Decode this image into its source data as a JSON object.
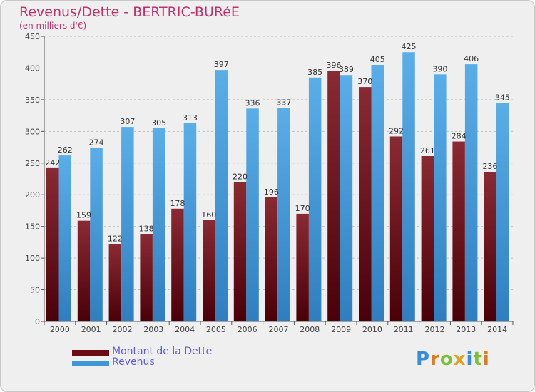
{
  "header": {
    "title": "Revenus/Dette - BERTRIC-BURéE",
    "subtitle": "(en milliers d'€)"
  },
  "colors": {
    "dette": "#6b0b14",
    "revenus": "#3d97d8",
    "title": "#c0306a",
    "legend_text": "#5b5bdb"
  },
  "legend": {
    "items": [
      {
        "label": "Montant de la Dette",
        "color": "#6b0b14"
      },
      {
        "label": "Revenus",
        "color": "#3d97d8"
      }
    ]
  },
  "logo": {
    "letters": [
      "P",
      "r",
      "o",
      "x",
      "i",
      "t",
      "i"
    ],
    "colors": [
      "#3a8ed8",
      "#e07a20",
      "#7bbf3a",
      "#e0a020",
      "#3a8ed8",
      "#7bbf3a",
      "#e07a20"
    ]
  },
  "chart_data": {
    "type": "bar",
    "title": "Revenus/Dette - BERTRIC-BURéE",
    "subtitle": "(en milliers d'€)",
    "categories": [
      "2000",
      "2001",
      "2002",
      "2003",
      "2004",
      "2005",
      "2006",
      "2007",
      "2008",
      "2009",
      "2010",
      "2011",
      "2012",
      "2013",
      "2014"
    ],
    "series": [
      {
        "name": "Montant de la Dette",
        "values": [
          242,
          159,
          122,
          138,
          178,
          160,
          220,
          196,
          170,
          396,
          370,
          292,
          261,
          284,
          236
        ]
      },
      {
        "name": "Revenus",
        "values": [
          262,
          274,
          307,
          305,
          313,
          397,
          336,
          337,
          385,
          389,
          405,
          425,
          390,
          406,
          345
        ]
      }
    ],
    "y_ticks": [
      0,
      50,
      100,
      150,
      200,
      250,
      300,
      350,
      400,
      450
    ],
    "ylim": [
      0,
      450
    ],
    "grid": true,
    "legend_position": "bottom-left"
  }
}
